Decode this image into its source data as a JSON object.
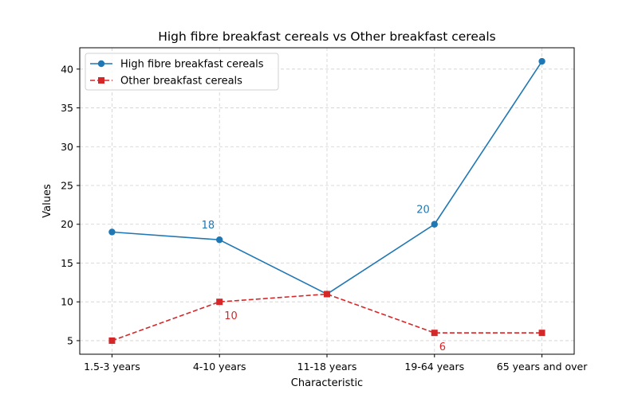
{
  "chart_data": {
    "type": "line",
    "title": "High fibre breakfast cereals vs Other breakfast cereals",
    "xlabel": "Characteristic",
    "ylabel": "Values",
    "categories": [
      "1.5-3 years",
      "4-10 years",
      "11-18 years",
      "19-64 years",
      "65 years and over"
    ],
    "ylim": [
      3.25,
      42.75
    ],
    "yticks": [
      5,
      10,
      15,
      20,
      25,
      30,
      35,
      40
    ],
    "grid": true,
    "legend_position": "top-left",
    "series": [
      {
        "name": "High fibre breakfast cereals",
        "values": [
          19,
          18,
          11,
          20,
          41
        ],
        "color": "#1f77b4",
        "marker": "circle",
        "line_style": "solid"
      },
      {
        "name": "Other breakfast cereals",
        "values": [
          5,
          10,
          11,
          6,
          6
        ],
        "color": "#d62728",
        "marker": "square",
        "line_style": "dashed"
      }
    ],
    "annotations": [
      {
        "series": 0,
        "index": 1,
        "text": "18",
        "placement": "above-left"
      },
      {
        "series": 0,
        "index": 3,
        "text": "20",
        "placement": "above-left"
      },
      {
        "series": 1,
        "index": 1,
        "text": "10",
        "placement": "below-right"
      },
      {
        "series": 1,
        "index": 3,
        "text": "6",
        "placement": "below-right"
      }
    ]
  }
}
